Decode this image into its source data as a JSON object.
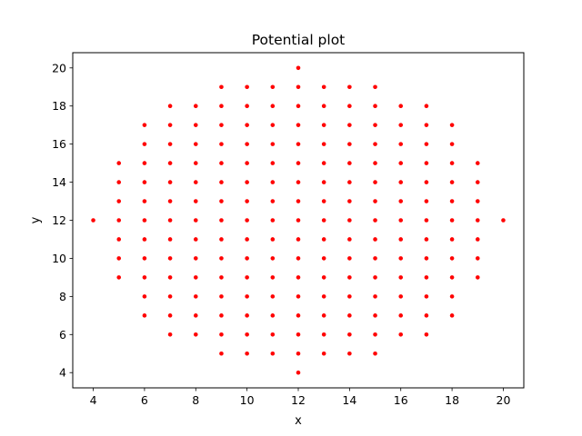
{
  "chart_data": {
    "type": "scatter",
    "title": "Potential plot",
    "xlabel": "x",
    "ylabel": "y",
    "xlim": [
      3.2,
      20.8
    ],
    "ylim": [
      3.2,
      20.8
    ],
    "xticks": [
      4,
      6,
      8,
      10,
      12,
      14,
      16,
      18,
      20
    ],
    "yticks": [
      4,
      6,
      8,
      10,
      12,
      14,
      16,
      18,
      20
    ],
    "grid": false,
    "marker_color": "#ff0000",
    "columns": [
      {
        "x": 4,
        "y": [
          12
        ]
      },
      {
        "x": 5,
        "y": [
          9,
          10,
          11,
          12,
          13,
          14,
          15
        ]
      },
      {
        "x": 6,
        "y": [
          7,
          8,
          9,
          10,
          11,
          12,
          13,
          14,
          15,
          16,
          17
        ]
      },
      {
        "x": 7,
        "y": [
          6,
          7,
          8,
          9,
          10,
          11,
          12,
          13,
          14,
          15,
          16,
          17,
          18
        ]
      },
      {
        "x": 8,
        "y": [
          6,
          7,
          8,
          9,
          10,
          11,
          12,
          13,
          14,
          15,
          16,
          17,
          18
        ]
      },
      {
        "x": 9,
        "y": [
          5,
          6,
          7,
          8,
          9,
          10,
          11,
          12,
          13,
          14,
          15,
          16,
          17,
          18,
          19
        ]
      },
      {
        "x": 10,
        "y": [
          5,
          6,
          7,
          8,
          9,
          10,
          11,
          12,
          13,
          14,
          15,
          16,
          17,
          18,
          19
        ]
      },
      {
        "x": 11,
        "y": [
          5,
          6,
          7,
          8,
          9,
          10,
          11,
          12,
          13,
          14,
          15,
          16,
          17,
          18,
          19
        ]
      },
      {
        "x": 12,
        "y": [
          4,
          5,
          6,
          7,
          8,
          9,
          10,
          11,
          12,
          13,
          14,
          15,
          16,
          17,
          18,
          19,
          20
        ]
      },
      {
        "x": 13,
        "y": [
          5,
          6,
          7,
          8,
          9,
          10,
          11,
          12,
          13,
          14,
          15,
          16,
          17,
          18,
          19
        ]
      },
      {
        "x": 14,
        "y": [
          5,
          6,
          7,
          8,
          9,
          10,
          11,
          12,
          13,
          14,
          15,
          16,
          17,
          18,
          19
        ]
      },
      {
        "x": 15,
        "y": [
          5,
          6,
          7,
          8,
          9,
          10,
          11,
          12,
          13,
          14,
          15,
          16,
          17,
          18,
          19
        ]
      },
      {
        "x": 16,
        "y": [
          6,
          7,
          8,
          9,
          10,
          11,
          12,
          13,
          14,
          15,
          16,
          17,
          18
        ]
      },
      {
        "x": 17,
        "y": [
          6,
          7,
          8,
          9,
          10,
          11,
          12,
          13,
          14,
          15,
          16,
          17,
          18
        ]
      },
      {
        "x": 18,
        "y": [
          7,
          8,
          9,
          10,
          11,
          12,
          13,
          14,
          15,
          16,
          17
        ]
      },
      {
        "x": 19,
        "y": [
          9,
          10,
          11,
          12,
          13,
          14,
          15
        ]
      },
      {
        "x": 20,
        "y": [
          12
        ]
      }
    ]
  }
}
